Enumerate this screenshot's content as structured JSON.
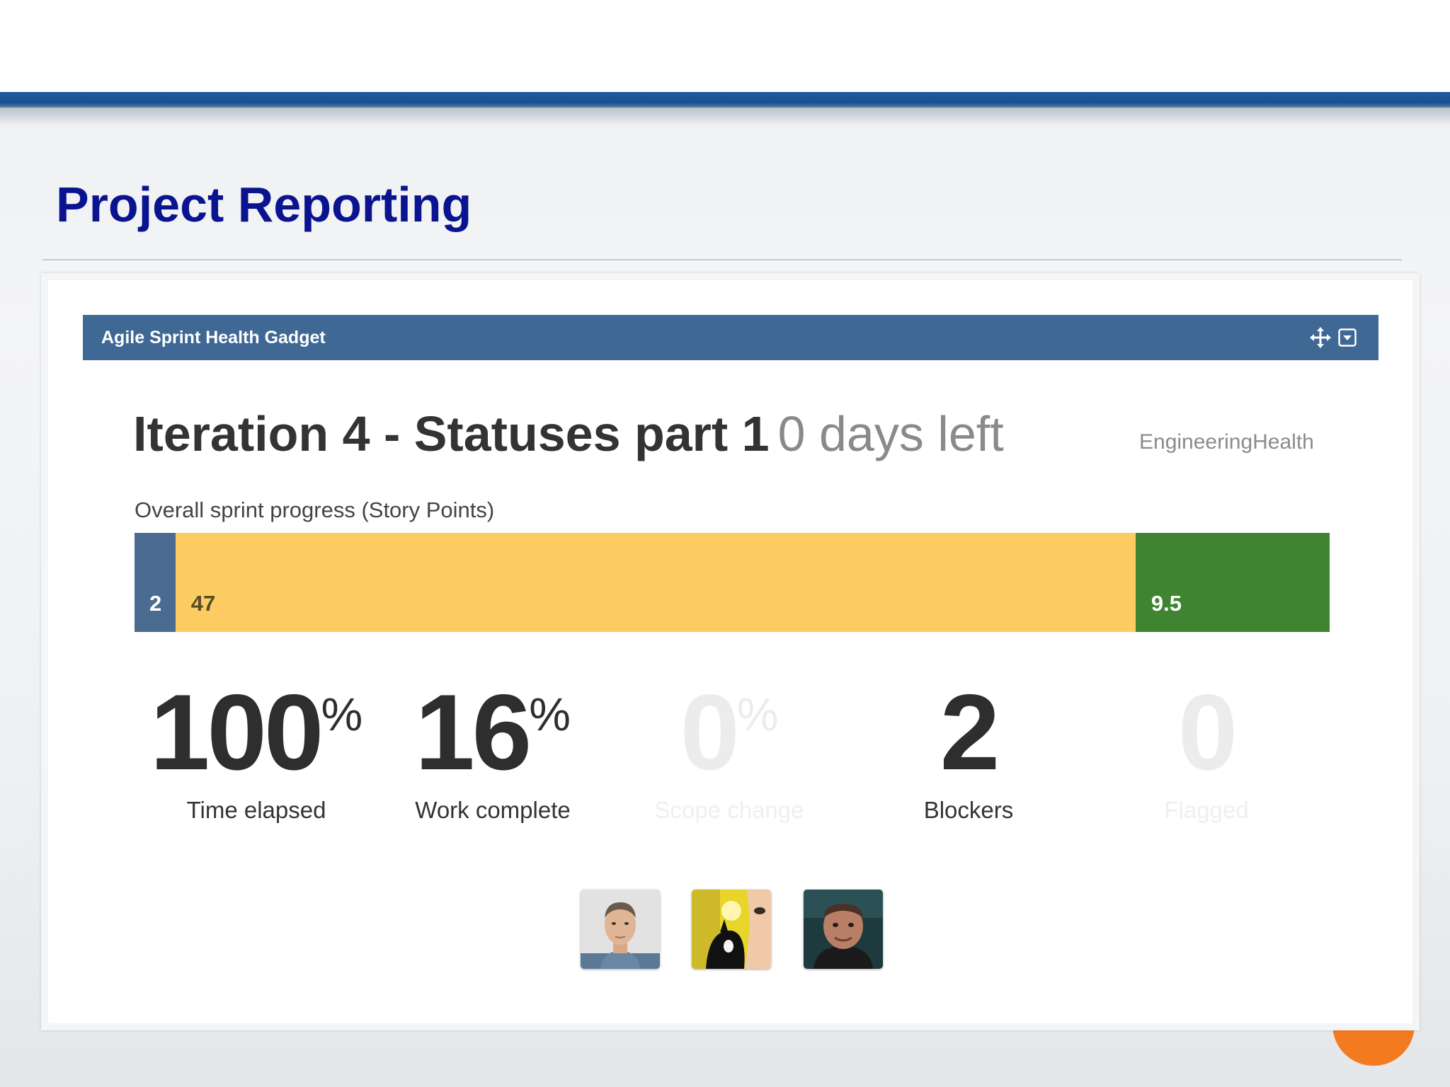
{
  "slide": {
    "title": "Project Reporting"
  },
  "gadget": {
    "header_title": "Agile Sprint Health Gadget",
    "move_icon": "move-arrows-icon",
    "menu_icon": "dropdown-menu-icon",
    "accent_color": "#3f6895"
  },
  "sprint": {
    "name": "Iteration 4 - Statuses part 1",
    "days_left": "0 days left",
    "board": "EngineeringHealth"
  },
  "progress": {
    "label": "Overall sprint progress (Story Points)",
    "segments": [
      {
        "key": "todo",
        "label": "2",
        "value": 2,
        "color": "#4b6b91"
      },
      {
        "key": "inprogress",
        "label": "47",
        "value": 47,
        "color": "#fccc63"
      },
      {
        "key": "done",
        "label": "9.5",
        "value": 9.5,
        "color": "#3e8431"
      }
    ]
  },
  "stats": [
    {
      "value": "100",
      "suffix": "%",
      "label": "Time elapsed",
      "muted": false
    },
    {
      "value": "16",
      "suffix": "%",
      "label": "Work complete",
      "muted": false
    },
    {
      "value": "0",
      "suffix": "%",
      "label": "Scope change",
      "muted": true
    },
    {
      "value": "2",
      "suffix": "",
      "label": "Blockers",
      "muted": false
    },
    {
      "value": "0",
      "suffix": "",
      "label": "Flagged",
      "muted": true
    }
  ],
  "assignees": [
    {
      "avatar": "user-avatar-1"
    },
    {
      "avatar": "user-avatar-2"
    },
    {
      "avatar": "user-avatar-3"
    }
  ]
}
